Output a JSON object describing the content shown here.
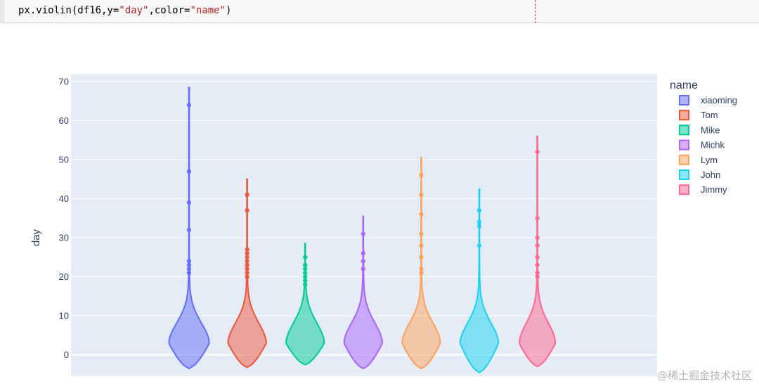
{
  "code": {
    "func": "px.violin(df16,y=",
    "arg_y": "\"day\"",
    "sep": ",color=",
    "arg_color": "\"name\"",
    "close": ")"
  },
  "watermark": "@稀土掘金技术社区",
  "chart_data": {
    "type": "violin",
    "ylabel": "day",
    "ylim": [
      -5.5,
      72
    ],
    "yticks": [
      0,
      10,
      20,
      30,
      40,
      50,
      60,
      70
    ],
    "legend_title": "name",
    "legend_position": "right",
    "plot_background": "#e5ecf6",
    "grid": true,
    "series": [
      {
        "name": "xiaoming",
        "color": "#636efa",
        "min": -3.5,
        "max": 68.5,
        "peak_width": 0.9,
        "points": [
          64,
          47,
          39,
          32,
          24,
          23,
          22,
          21
        ]
      },
      {
        "name": "Tom",
        "color": "#ef553b",
        "min": -3.2,
        "max": 45,
        "peak_width": 0.85,
        "points": [
          41,
          37,
          27,
          26,
          25,
          24,
          23,
          22,
          21,
          20
        ]
      },
      {
        "name": "Mike",
        "color": "#00cc96",
        "min": -2.5,
        "max": 28.5,
        "peak_width": 0.85,
        "points": [
          25,
          23,
          22,
          21,
          20,
          19,
          18
        ]
      },
      {
        "name": "Michk",
        "color": "#ab63fa",
        "min": -3.5,
        "max": 35.5,
        "peak_width": 0.85,
        "points": [
          31,
          26,
          24,
          22
        ]
      },
      {
        "name": "Lym",
        "color": "#ffa15a",
        "min": -3.5,
        "max": 50.5,
        "peak_width": 0.85,
        "points": [
          46,
          41,
          36,
          31,
          28,
          25,
          22,
          21
        ]
      },
      {
        "name": "John",
        "color": "#19d3f3",
        "min": -4.5,
        "max": 42.5,
        "peak_width": 0.85,
        "points": [
          37,
          34,
          33,
          28
        ]
      },
      {
        "name": "Jimmy",
        "color": "#ff6692",
        "min": -3,
        "max": 56,
        "peak_width": 0.8,
        "points": [
          52,
          35,
          30,
          28,
          25,
          23,
          21,
          20
        ]
      }
    ]
  }
}
